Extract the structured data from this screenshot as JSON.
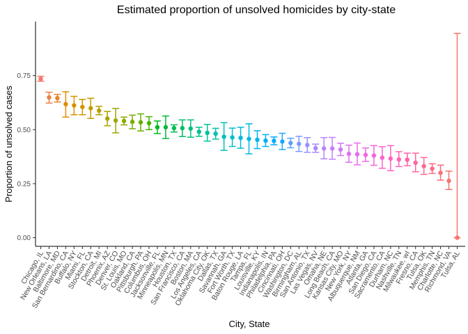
{
  "chart_data": {
    "type": "scatter",
    "title": "Estimated proportion of unsolved homicides by city-state",
    "xlabel": "City, State",
    "ylabel": "Proportion of unsolved cases",
    "ylim": [
      -0.04,
      1.0
    ],
    "yticks": [
      0.0,
      0.25,
      0.5,
      0.75
    ],
    "ytick_labels": [
      "0.00",
      "0.25",
      "0.50",
      "0.75"
    ],
    "grid": false,
    "legend": "none",
    "error_bars": true,
    "points": [
      {
        "city": "Chicago, IL",
        "estimate": 0.735,
        "low": 0.724,
        "high": 0.747,
        "color": "#F8766D"
      },
      {
        "city": "New Orleans, LA",
        "estimate": 0.649,
        "low": 0.623,
        "high": 0.673,
        "color": "#EE7F46"
      },
      {
        "city": "Baltimore, MD",
        "estimate": 0.646,
        "low": 0.628,
        "high": 0.663,
        "color": "#E88526"
      },
      {
        "city": "San Bernardino, CA",
        "estimate": 0.618,
        "low": 0.558,
        "high": 0.675,
        "color": "#E18A00"
      },
      {
        "city": "Buffalo, NY",
        "estimate": 0.612,
        "low": 0.569,
        "high": 0.654,
        "color": "#D89000"
      },
      {
        "city": "Miami, FL",
        "estimate": 0.605,
        "low": 0.569,
        "high": 0.64,
        "color": "#CF9400"
      },
      {
        "city": "Stockton, CA",
        "estimate": 0.599,
        "low": 0.552,
        "high": 0.645,
        "color": "#C49A00"
      },
      {
        "city": "Detroit, MI",
        "estimate": 0.588,
        "low": 0.569,
        "high": 0.608,
        "color": "#B89F00"
      },
      {
        "city": "Phoenix, AZ",
        "estimate": 0.551,
        "low": 0.518,
        "high": 0.584,
        "color": "#ABA300"
      },
      {
        "city": "Denver, CO",
        "estimate": 0.542,
        "low": 0.485,
        "high": 0.598,
        "color": "#9CA700"
      },
      {
        "city": "St. Louis, MO",
        "estimate": 0.54,
        "low": 0.522,
        "high": 0.558,
        "color": "#8CAB00"
      },
      {
        "city": "Oakland, CA",
        "estimate": 0.536,
        "low": 0.504,
        "high": 0.567,
        "color": "#7AAE00"
      },
      {
        "city": "Pittsburgh, PA",
        "estimate": 0.534,
        "low": 0.494,
        "high": 0.573,
        "color": "#64B200"
      },
      {
        "city": "Columbus, OH",
        "estimate": 0.53,
        "low": 0.5,
        "high": 0.56,
        "color": "#45B500"
      },
      {
        "city": "Jacksonville, FL",
        "estimate": 0.511,
        "low": 0.482,
        "high": 0.54,
        "color": "#00B81F"
      },
      {
        "city": "Minneapolis, MN",
        "estimate": 0.511,
        "low": 0.459,
        "high": 0.563,
        "color": "#00BA38"
      },
      {
        "city": "Houston, TX",
        "estimate": 0.507,
        "low": 0.489,
        "high": 0.522,
        "color": "#00BC50"
      },
      {
        "city": "San Francisco, CA",
        "estimate": 0.507,
        "low": 0.468,
        "high": 0.545,
        "color": "#00BE66"
      },
      {
        "city": "Boston, MA",
        "estimate": 0.505,
        "low": 0.465,
        "high": 0.545,
        "color": "#00BF79"
      },
      {
        "city": "Los Angeles, CA",
        "estimate": 0.49,
        "low": 0.469,
        "high": 0.511,
        "color": "#00C08B"
      },
      {
        "city": "Oklahoma City, OK",
        "estimate": 0.485,
        "low": 0.447,
        "high": 0.524,
        "color": "#00C19C"
      },
      {
        "city": "Dallas, TX",
        "estimate": 0.481,
        "low": 0.456,
        "high": 0.506,
        "color": "#00C0AC"
      },
      {
        "city": "Savannah, GA",
        "estimate": 0.467,
        "low": 0.404,
        "high": 0.532,
        "color": "#00BFBB"
      },
      {
        "city": "Fort Worth, TX",
        "estimate": 0.464,
        "low": 0.422,
        "high": 0.507,
        "color": "#00BDC9"
      },
      {
        "city": "Baton Rouge, LA",
        "estimate": 0.462,
        "low": 0.414,
        "high": 0.511,
        "color": "#00BBD6"
      },
      {
        "city": "Tampa, FL",
        "estimate": 0.457,
        "low": 0.388,
        "high": 0.527,
        "color": "#00B8E2"
      },
      {
        "city": "Louisville, KY",
        "estimate": 0.453,
        "low": 0.412,
        "high": 0.495,
        "color": "#00B4EF"
      },
      {
        "city": "Indianapolis, IN",
        "estimate": 0.449,
        "low": 0.422,
        "high": 0.477,
        "color": "#00B0F6"
      },
      {
        "city": "Philadelphia, PA",
        "estimate": 0.448,
        "low": 0.43,
        "high": 0.466,
        "color": "#00ACFC"
      },
      {
        "city": "Cincinnati, OH",
        "estimate": 0.445,
        "low": 0.408,
        "high": 0.483,
        "color": "#1FA6FF"
      },
      {
        "city": "Washington, DC",
        "estimate": 0.438,
        "low": 0.416,
        "high": 0.46,
        "color": "#5BA1FF"
      },
      {
        "city": "Birmingham, AL",
        "estimate": 0.434,
        "low": 0.399,
        "high": 0.469,
        "color": "#7C99FF"
      },
      {
        "city": "San Antonio, TX",
        "estimate": 0.429,
        "low": 0.395,
        "high": 0.463,
        "color": "#9590FF"
      },
      {
        "city": "Las Vegas, NV",
        "estimate": 0.414,
        "low": 0.395,
        "high": 0.433,
        "color": "#A987FF"
      },
      {
        "city": "Omaha, NE",
        "estimate": 0.413,
        "low": 0.365,
        "high": 0.463,
        "color": "#B983FF"
      },
      {
        "city": "Long Beach, CA",
        "estimate": 0.413,
        "low": 0.363,
        "high": 0.464,
        "color": "#C77CFF"
      },
      {
        "city": "Kansas City, MO",
        "estimate": 0.408,
        "low": 0.38,
        "high": 0.437,
        "color": "#D376F9"
      },
      {
        "city": "New York, NY",
        "estimate": 0.388,
        "low": 0.349,
        "high": 0.428,
        "color": "#DE70F2"
      },
      {
        "city": "Albuquerque, NM",
        "estimate": 0.386,
        "low": 0.337,
        "high": 0.438,
        "color": "#E76BEB"
      },
      {
        "city": "Atlanta, GA",
        "estimate": 0.383,
        "low": 0.353,
        "high": 0.415,
        "color": "#EF67E2"
      },
      {
        "city": "San Diego, CA",
        "estimate": 0.38,
        "low": 0.335,
        "high": 0.426,
        "color": "#F564DA"
      },
      {
        "city": "Sacramento, CA",
        "estimate": 0.37,
        "low": 0.321,
        "high": 0.421,
        "color": "#FA62CF"
      },
      {
        "city": "Durham, NC",
        "estimate": 0.366,
        "low": 0.31,
        "high": 0.426,
        "color": "#FD61C4"
      },
      {
        "city": "Nashville, TN",
        "estimate": 0.362,
        "low": 0.329,
        "high": 0.398,
        "color": "#FF61B8"
      },
      {
        "city": "Milwaukee, wI",
        "estimate": 0.361,
        "low": 0.333,
        "high": 0.391,
        "color": "#FF62AB"
      },
      {
        "city": "Fresno, CA",
        "estimate": 0.347,
        "low": 0.305,
        "high": 0.391,
        "color": "#FF649E"
      },
      {
        "city": "Tulsa, OK",
        "estimate": 0.331,
        "low": 0.293,
        "high": 0.371,
        "color": "#FF6791"
      },
      {
        "city": "Memphis, TN",
        "estimate": 0.319,
        "low": 0.297,
        "high": 0.342,
        "color": "#FD6A84"
      },
      {
        "city": "Charlotte, NC",
        "estimate": 0.3,
        "low": 0.266,
        "high": 0.336,
        "color": "#FA6E78"
      },
      {
        "city": "Richmond, VA",
        "estimate": 0.263,
        "low": 0.223,
        "high": 0.308,
        "color": "#F7726D"
      },
      {
        "city": "Tulsa, AL",
        "estimate": 0.0,
        "low": 0.0,
        "high": 0.945,
        "color": "#F8766D"
      }
    ]
  }
}
